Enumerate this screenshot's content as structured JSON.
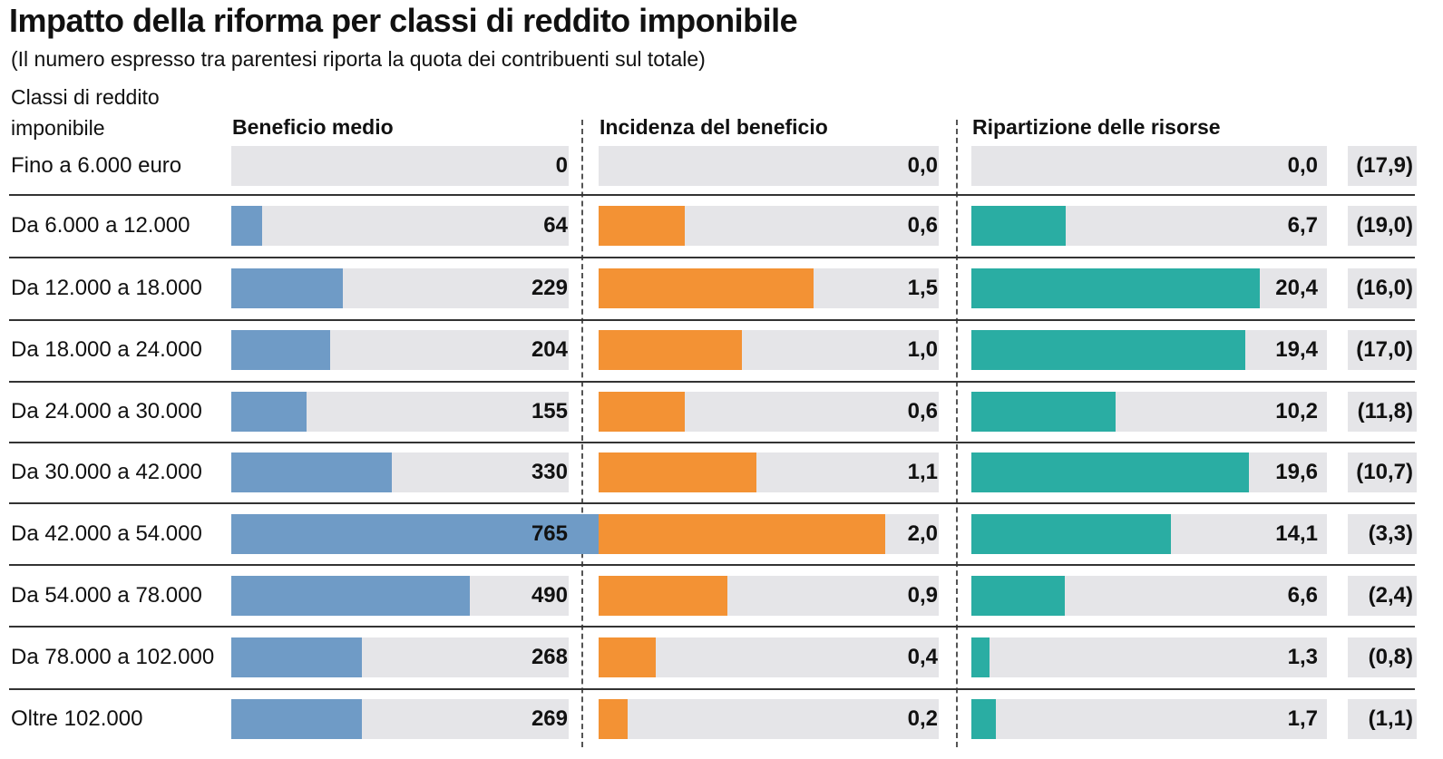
{
  "chart_data": {
    "type": "bar",
    "title": "Impatto della riforma per classi di reddito imponibile",
    "subtitle": "(Il numero espresso tra parentesi riporta la quota dei contribuenti sul totale)",
    "row_header": "Classi di reddito imponibile",
    "categories": [
      "Fino a 6.000 euro",
      "Da 6.000 a 12.000",
      "Da 12.000 a 18.000",
      "Da 18.000 a 24.000",
      "Da 24.000 a 30.000",
      "Da 30.000 a 42.000",
      "Da 42.000 a 54.000",
      "Da 54.000 a 78.000",
      "Da 78.000 a 102.000",
      "Oltre 102.000"
    ],
    "series": [
      {
        "name": "Beneficio medio",
        "color": "#6f9bc6",
        "values": [
          0,
          64,
          229,
          204,
          155,
          330,
          765,
          490,
          268,
          269
        ],
        "labels": [
          "0",
          "64",
          "229",
          "204",
          "155",
          "330",
          "765",
          "490",
          "268",
          "269"
        ]
      },
      {
        "name": "Incidenza del beneficio",
        "color": "#f39234",
        "values": [
          0.0,
          0.6,
          1.5,
          1.0,
          0.6,
          1.1,
          2.0,
          0.9,
          0.4,
          0.2
        ],
        "labels": [
          "0,0",
          "0,6",
          "1,5",
          "1,0",
          "0,6",
          "1,1",
          "2,0",
          "0,9",
          "0,4",
          "0,2"
        ]
      },
      {
        "name": "Ripartizione delle risorse",
        "color": "#2aada3",
        "values": [
          0.0,
          6.7,
          20.4,
          19.4,
          10.2,
          19.6,
          14.1,
          6.6,
          1.3,
          1.7
        ],
        "labels": [
          "0,0",
          "6,7",
          "20,4",
          "19,4",
          "10,2",
          "19,6",
          "14,1",
          "6,6",
          "1,3",
          "1,7"
        ]
      }
    ],
    "taxpayer_share": [
      "(17,9)",
      "(19,0)",
      "(16,0)",
      "(17,0)",
      "(11,8)",
      "(10,7)",
      "(3,3)",
      "(2,4)",
      "(0,8)",
      "(1,1)"
    ],
    "grid": false
  }
}
